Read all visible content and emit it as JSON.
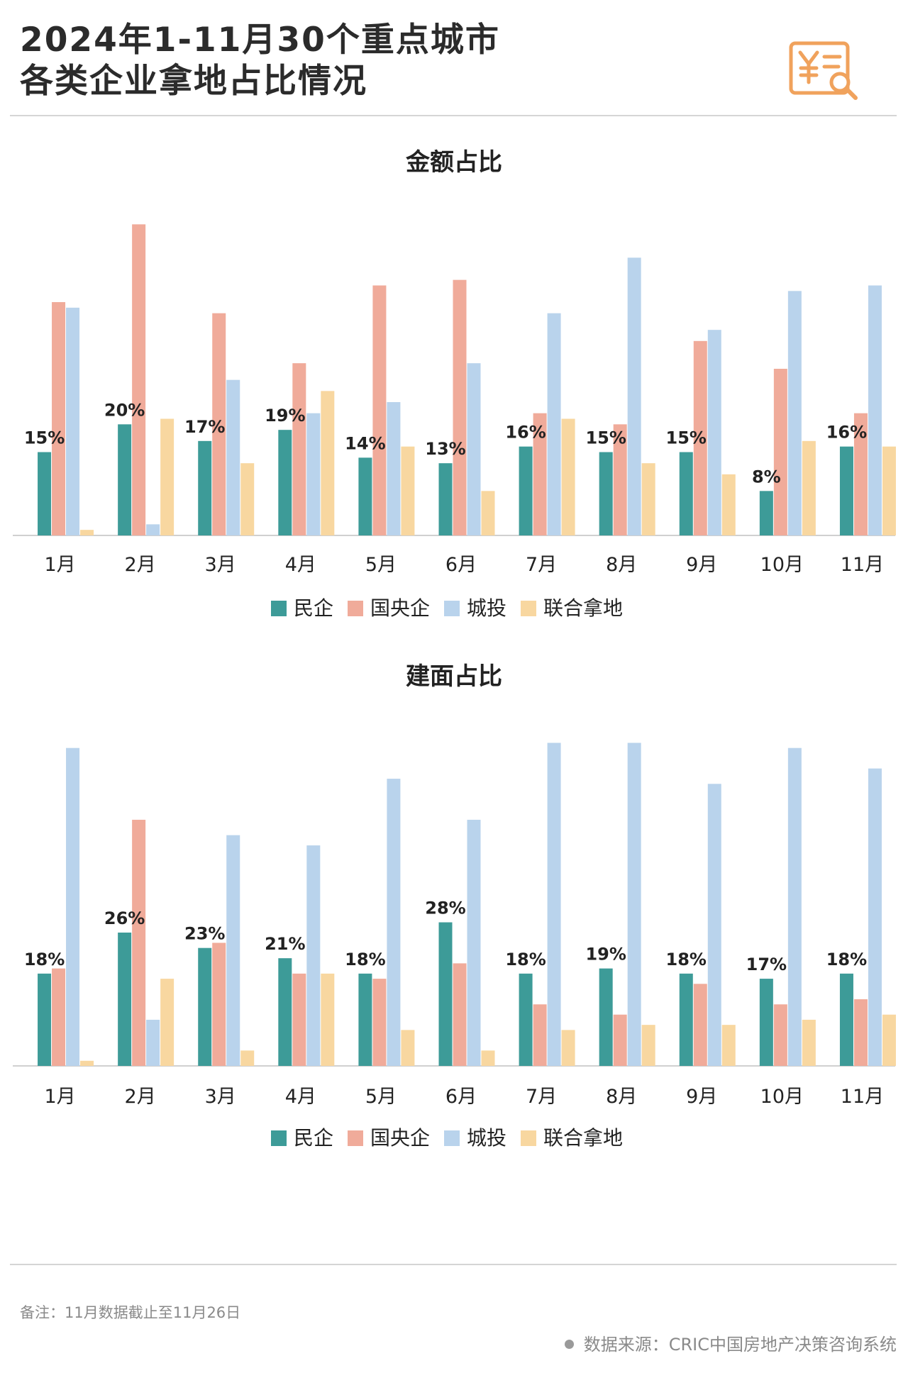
{
  "header": {
    "title_line1": "2024年1-11月30个重点城市",
    "title_line2": "各类企业拿地占比情况"
  },
  "colors": {
    "民企": "#3d9b98",
    "国央企": "#f0ab9a",
    "城投": "#b9d3ec",
    "联合拿地": "#f8d7a0"
  },
  "icons": {
    "logo": "yuan-document-magnifier-icon"
  },
  "chart_data": [
    {
      "type": "bar",
      "title": "金额占比",
      "categories": [
        "1月",
        "2月",
        "3月",
        "4月",
        "5月",
        "6月",
        "7月",
        "8月",
        "9月",
        "10月",
        "11月"
      ],
      "series": [
        {
          "name": "民企",
          "values": [
            15,
            20,
            17,
            19,
            14,
            13,
            16,
            15,
            15,
            8,
            16
          ]
        },
        {
          "name": "国央企",
          "values": [
            42,
            56,
            40,
            31,
            45,
            46,
            22,
            20,
            35,
            30,
            22
          ]
        },
        {
          "name": "城投",
          "values": [
            41,
            2,
            28,
            22,
            24,
            31,
            40,
            50,
            37,
            44,
            45
          ]
        },
        {
          "name": "联合拿地",
          "values": [
            1,
            21,
            13,
            26,
            16,
            8,
            21,
            13,
            11,
            17,
            16
          ]
        }
      ],
      "data_labels": [
        "15%",
        "20%",
        "17%",
        "19%",
        "14%",
        "13%",
        "16%",
        "15%",
        "15%",
        "8%",
        "16%"
      ],
      "ylim": [
        0,
        60
      ],
      "grid": false,
      "legend": "bottom"
    },
    {
      "type": "bar",
      "title": "建面占比",
      "categories": [
        "1月",
        "2月",
        "3月",
        "4月",
        "5月",
        "6月",
        "7月",
        "8月",
        "9月",
        "10月",
        "11月"
      ],
      "series": [
        {
          "name": "民企",
          "values": [
            18,
            26,
            23,
            21,
            18,
            28,
            18,
            19,
            18,
            17,
            18
          ]
        },
        {
          "name": "国央企",
          "values": [
            19,
            48,
            24,
            18,
            17,
            20,
            12,
            10,
            16,
            12,
            13
          ]
        },
        {
          "name": "城投",
          "values": [
            62,
            9,
            45,
            43,
            56,
            48,
            63,
            63,
            55,
            62,
            58
          ]
        },
        {
          "name": "联合拿地",
          "values": [
            1,
            17,
            3,
            18,
            7,
            3,
            7,
            8,
            8,
            9,
            10
          ]
        }
      ],
      "data_labels": [
        "18%",
        "26%",
        "23%",
        "21%",
        "18%",
        "28%",
        "18%",
        "19%",
        "18%",
        "17%",
        "18%"
      ],
      "ylim": [
        0,
        65
      ],
      "grid": false,
      "legend": "bottom"
    }
  ],
  "footer": {
    "note": "备注：11月数据截止至11月26日",
    "source": "数据来源：CRIC中国房地产决策咨询系统"
  }
}
